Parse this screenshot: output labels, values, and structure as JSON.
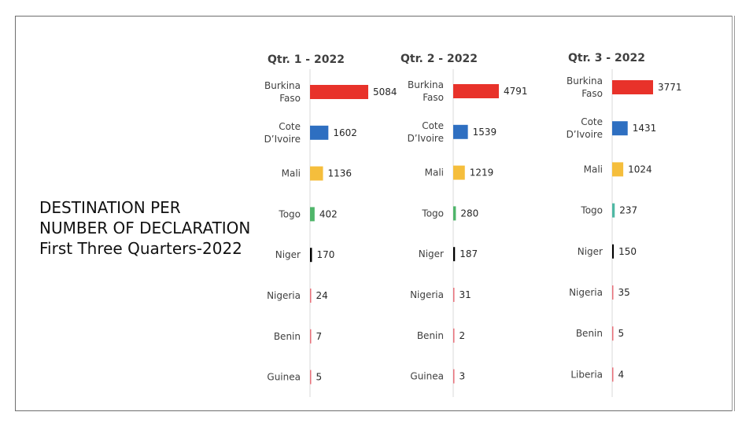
{
  "heading": {
    "line1": "DESTINATION PER",
    "line2": "NUMBER OF DECLARATION",
    "line3": "First Three Quarters-2022"
  },
  "colors": {
    "red": "#e8322a",
    "blue": "#2e6fc1",
    "yellow": "#f5be3c",
    "green": "#4fb56a",
    "black": "#000000",
    "pink": "#e8707a",
    "teal": "#4fb8a4",
    "text": "#404040"
  },
  "chart_data": [
    {
      "type": "bar",
      "orientation": "horizontal",
      "title": "Qtr. 1 - 2022",
      "categories": [
        "Burkina\nFaso",
        "Cote\nD’Ivoire",
        "Mali",
        "Togo",
        "Niger",
        "Nigeria",
        "Benin",
        "Guinea"
      ],
      "values": [
        5084,
        1602,
        1136,
        402,
        170,
        24,
        7,
        5
      ],
      "bar_colors": [
        "#e8322a",
        "#2e6fc1",
        "#f5be3c",
        "#4fb56a",
        "#000000",
        "#e8707a",
        "#e8707a",
        "#e8707a"
      ],
      "xlim": [
        0,
        5084
      ],
      "grid": false,
      "legend": "none"
    },
    {
      "type": "bar",
      "orientation": "horizontal",
      "title": "Qtr. 2 - 2022",
      "categories": [
        "Burkina\nFaso",
        "Cote\nD’Ivoire",
        "Mali",
        "Togo",
        "Niger",
        "Nigeria",
        "Benin",
        "Guinea"
      ],
      "values": [
        4791,
        1539,
        1219,
        280,
        187,
        31,
        2,
        3
      ],
      "bar_colors": [
        "#e8322a",
        "#2e6fc1",
        "#f5be3c",
        "#4fb56a",
        "#000000",
        "#e8707a",
        "#e8707a",
        "#e8707a"
      ],
      "xlim": [
        0,
        4791
      ],
      "grid": false,
      "legend": "none"
    },
    {
      "type": "bar",
      "orientation": "horizontal",
      "title": "Qtr. 3 - 2022",
      "categories": [
        "Burkina\nFaso",
        "Cote\nD’Ivoire",
        "Mali",
        "Togo",
        "Niger",
        "Nigeria",
        "Benin",
        "Liberia"
      ],
      "values": [
        3771,
        1431,
        1024,
        237,
        150,
        35,
        5,
        4
      ],
      "bar_colors": [
        "#e8322a",
        "#2e6fc1",
        "#f5be3c",
        "#4fb8a4",
        "#000000",
        "#e8707a",
        "#e8707a",
        "#e8707a"
      ],
      "xlim": [
        0,
        3771
      ],
      "grid": false,
      "legend": "none"
    }
  ]
}
